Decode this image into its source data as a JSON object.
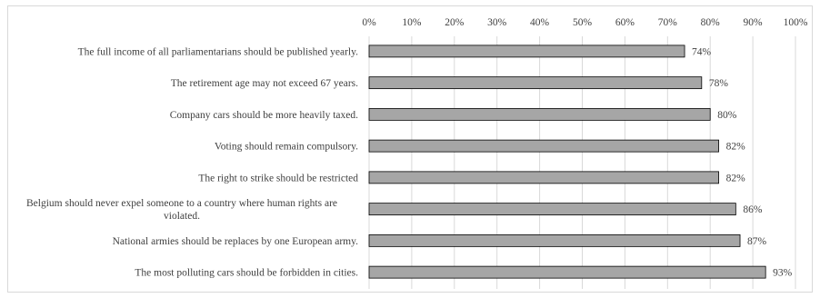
{
  "chart_data": {
    "type": "bar",
    "orientation": "horizontal",
    "title": "",
    "xlabel": "",
    "ylabel": "",
    "xlim": [
      0,
      100
    ],
    "tick_values": [
      0,
      10,
      20,
      30,
      40,
      50,
      60,
      70,
      80,
      90,
      100
    ],
    "tick_labels": [
      "0%",
      "10%",
      "20%",
      "30%",
      "40%",
      "50%",
      "60%",
      "70%",
      "80%",
      "90%",
      "100%"
    ],
    "x_axis_position": "top",
    "grid": true,
    "legend": "none",
    "categories": [
      [
        "The full income of all parliamentarians should be published yearly."
      ],
      [
        "The retirement age may not exceed 67 years."
      ],
      [
        "Company cars should be more heavily taxed."
      ],
      [
        "Voting should remain compulsory."
      ],
      [
        "The right to strike should be restricted"
      ],
      [
        "Belgium should never expel someone to a country where human rights are",
        "violated."
      ],
      [
        "National armies should be replaces by one European army."
      ],
      [
        "The most polluting cars should be forbidden in cities."
      ]
    ],
    "values": [
      74,
      78,
      80,
      82,
      82,
      86,
      87,
      93
    ],
    "value_labels": [
      "74%",
      "78%",
      "80%",
      "82%",
      "82%",
      "86%",
      "87%",
      "93%"
    ],
    "colors": {
      "bar_fill": "#a6a6a6",
      "bar_stroke": "#000000",
      "grid": "#d9d9d9",
      "text": "#404040"
    }
  }
}
